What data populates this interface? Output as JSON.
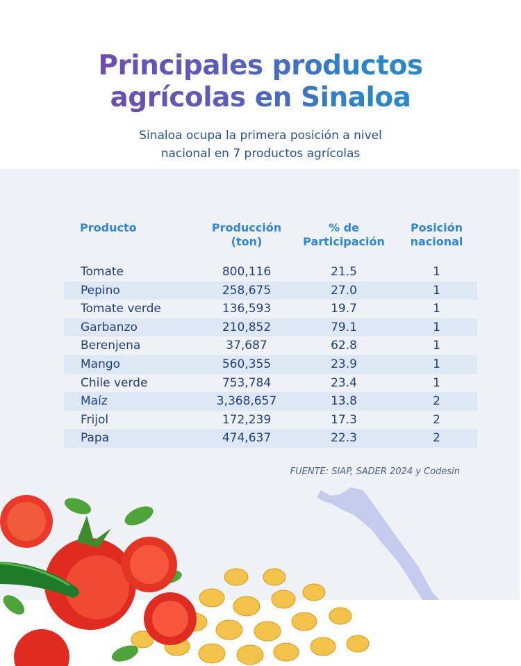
{
  "title": {
    "line1": "Principales productos",
    "line2": "agrícolas en Sinaloa"
  },
  "subtitle": {
    "line1": "Sinaloa ocupa la primera posición a nivel",
    "line2": "nacional en 7 productos agrícolas"
  },
  "colors": {
    "title_start": "#7b3fa6",
    "title_end": "#2a8fd0",
    "header": "#2f86d6",
    "text": "#1f3f7a",
    "band": "#dde8f4",
    "panel": "#eef2f7",
    "map": "#c5cbec"
  },
  "chart_data": {
    "type": "table",
    "columns": [
      {
        "line1": "Producto",
        "line2": ""
      },
      {
        "line1": "Producción",
        "line2": "(ton)"
      },
      {
        "line1": "% de",
        "line2": "Participación"
      },
      {
        "line1": "Posición",
        "line2": "nacional"
      }
    ],
    "rows": [
      {
        "producto": "Tomate",
        "produccion": "800,116",
        "participacion": "21.5",
        "posicion": "1"
      },
      {
        "producto": "Pepino",
        "produccion": "258,675",
        "participacion": "27.0",
        "posicion": "1"
      },
      {
        "producto": "Tomate verde",
        "produccion": "136,593",
        "participacion": "19.7",
        "posicion": "1"
      },
      {
        "producto": "Garbanzo",
        "produccion": "210,852",
        "participacion": "79.1",
        "posicion": "1"
      },
      {
        "producto": "Berenjena",
        "produccion": "37,687",
        "participacion": "62.8",
        "posicion": "1"
      },
      {
        "producto": "Mango",
        "produccion": "560,355",
        "participacion": "23.9",
        "posicion": "1"
      },
      {
        "producto": "Chile verde",
        "produccion": "753,784",
        "participacion": "23.4",
        "posicion": "1"
      },
      {
        "producto": "Maíz",
        "produccion": "3,368,657",
        "participacion": "13.8",
        "posicion": "2"
      },
      {
        "producto": "Frijol",
        "produccion": "172,239",
        "participacion": "17.3",
        "posicion": "2"
      },
      {
        "producto": "Papa",
        "produccion": "474,637",
        "participacion": "22.3",
        "posicion": "2"
      }
    ]
  },
  "source": "FUENTE: SIAP, SADER 2024 y Codesin",
  "decor": {
    "map": "sinaloa-map-silhouette",
    "vegetables": "tomato-chili-corn-basil-illustration"
  }
}
